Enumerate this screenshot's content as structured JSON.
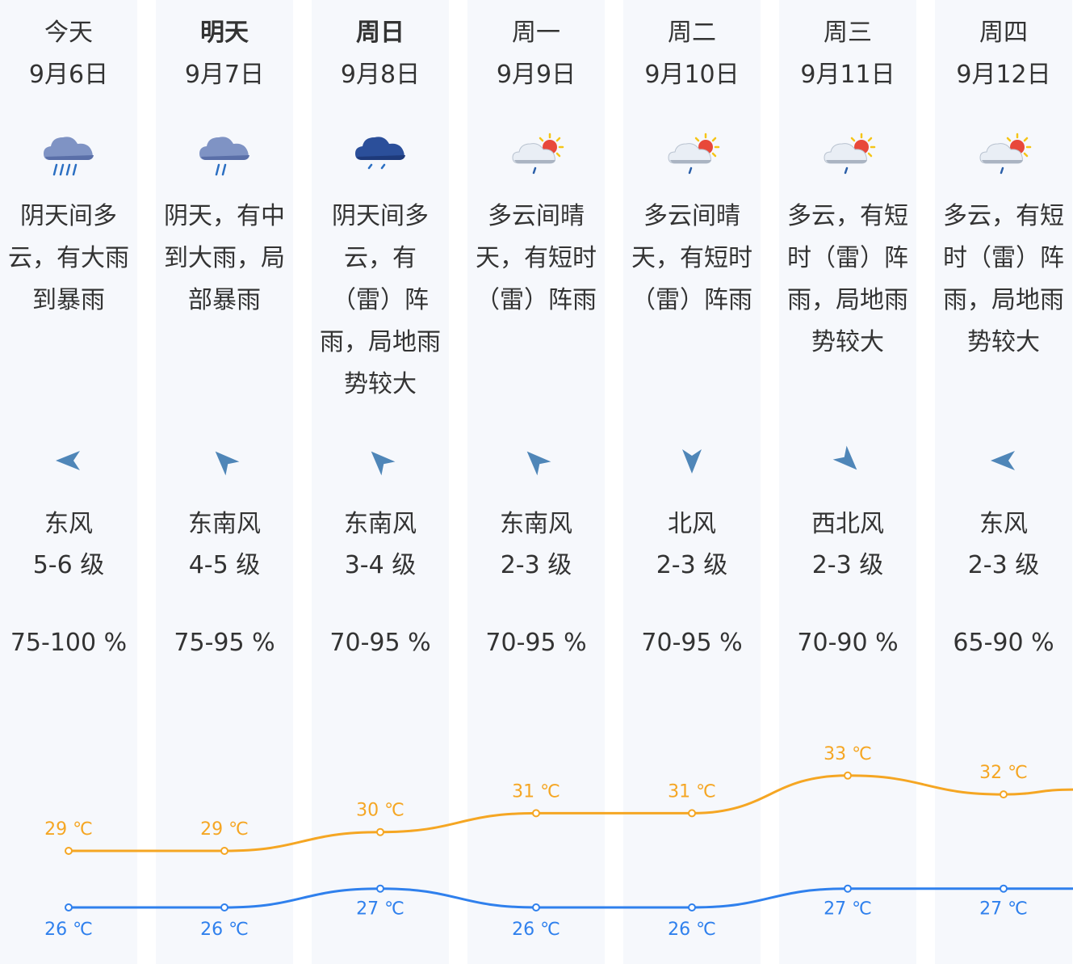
{
  "colors": {
    "column_bg": "#f6f8fc",
    "high_line": "#f5a623",
    "low_line": "#2f80ed",
    "arrow": "#4f86b8"
  },
  "days": [
    {
      "weekday": "今天",
      "date": "9月6日",
      "bold": false,
      "icon": "heavy-rain-icon",
      "desc": [
        "阴天间多",
        "云，有大雨",
        "到暴雨"
      ],
      "wind_dir": "东风",
      "wind_level": "5-6 级",
      "wind_bearing": 270,
      "humidity": "75-100 %",
      "high": 29,
      "low": 26,
      "high_label": "29 ℃",
      "low_label": "26 ℃"
    },
    {
      "weekday": "明天",
      "date": "9月7日",
      "bold": true,
      "icon": "moderate-rain-icon",
      "desc": [
        "阴天，有中",
        "到大雨，局",
        "部暴雨"
      ],
      "wind_dir": "东南风",
      "wind_level": "4-5 级",
      "wind_bearing": 315,
      "humidity": "75-95 %",
      "high": 29,
      "low": 26,
      "high_label": "29 ℃",
      "low_label": "26 ℃"
    },
    {
      "weekday": "周日",
      "date": "9月8日",
      "bold": true,
      "icon": "light-rain-icon",
      "desc": [
        "阴天间多",
        "云，有",
        "（雷）阵",
        "雨，局地雨",
        "势较大"
      ],
      "wind_dir": "东南风",
      "wind_level": "3-4 级",
      "wind_bearing": 315,
      "humidity": "70-95 %",
      "high": 30,
      "low": 27,
      "high_label": "30 ℃",
      "low_label": "27 ℃"
    },
    {
      "weekday": "周一",
      "date": "9月9日",
      "bold": false,
      "icon": "sun-cloud-shower-icon",
      "desc": [
        "多云间晴",
        "天，有短时",
        "（雷）阵雨"
      ],
      "wind_dir": "东南风",
      "wind_level": "2-3 级",
      "wind_bearing": 315,
      "humidity": "70-95 %",
      "high": 31,
      "low": 26,
      "high_label": "31 ℃",
      "low_label": "26 ℃"
    },
    {
      "weekday": "周二",
      "date": "9月10日",
      "bold": false,
      "icon": "sun-cloud-shower-icon",
      "desc": [
        "多云间晴",
        "天，有短时",
        "（雷）阵雨"
      ],
      "wind_dir": "北风",
      "wind_level": "2-3 级",
      "wind_bearing": 180,
      "humidity": "70-95 %",
      "high": 31,
      "low": 26,
      "high_label": "31 ℃",
      "low_label": "26 ℃"
    },
    {
      "weekday": "周三",
      "date": "9月11日",
      "bold": false,
      "icon": "sun-cloud-shower-icon",
      "desc": [
        "多云，有短",
        "时（雷）阵",
        "雨，局地雨",
        "势较大"
      ],
      "wind_dir": "西北风",
      "wind_level": "2-3 级",
      "wind_bearing": 135,
      "humidity": "70-90 %",
      "high": 33,
      "low": 27,
      "high_label": "33 ℃",
      "low_label": "27 ℃"
    },
    {
      "weekday": "周四",
      "date": "9月12日",
      "bold": false,
      "icon": "sun-cloud-shower-icon",
      "desc": [
        "多云，有短",
        "时（雷）阵",
        "雨，局地雨",
        "势较大"
      ],
      "wind_dir": "东风",
      "wind_level": "2-3 级",
      "wind_bearing": 270,
      "humidity": "65-90 %",
      "high": 32,
      "low": 27,
      "high_label": "32 ℃",
      "low_label": "27 ℃"
    }
  ]
}
